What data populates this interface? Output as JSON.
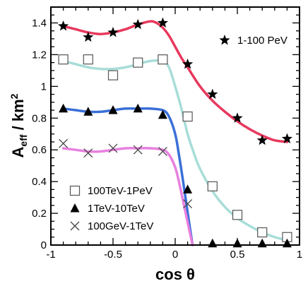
{
  "chart_data": {
    "type": "scatter",
    "xlabel": "cos θ",
    "ylabel_main": "A",
    "ylabel_sub": "eff",
    "ylabel_unit": " / km",
    "ylabel_sup": "2",
    "xlim": [
      -1,
      1
    ],
    "ylim": [
      0,
      1.5
    ],
    "xticks": [
      -1,
      -0.5,
      0,
      0.5,
      1
    ],
    "xtick_labels": [
      "-1",
      "-0.5",
      "0",
      "0.5",
      "1"
    ],
    "yticks": [
      0,
      0.2,
      0.4,
      0.6,
      0.8,
      1,
      1.2,
      1.4
    ],
    "ytick_labels": [
      "0",
      "0.2",
      "0.4",
      "0.6",
      "0.8",
      "1",
      "1.2",
      "1.4"
    ],
    "grid": false,
    "series": [
      {
        "name": "1-100 PeV",
        "marker": "star",
        "color": "#e8385c",
        "x": [
          -0.9,
          -0.7,
          -0.5,
          -0.3,
          -0.1,
          0.1,
          0.3,
          0.5,
          0.7,
          0.9
        ],
        "y": [
          1.38,
          1.31,
          1.34,
          1.39,
          1.4,
          1.14,
          0.95,
          0.8,
          0.66,
          0.67
        ],
        "curve_x": [
          -0.9,
          -0.8,
          -0.7,
          -0.6,
          -0.5,
          -0.4,
          -0.3,
          -0.2,
          -0.15,
          -0.1,
          -0.05,
          0.0,
          0.05,
          0.1,
          0.2,
          0.3,
          0.4,
          0.5,
          0.6,
          0.7,
          0.8,
          0.9
        ],
        "curve_y": [
          1.38,
          1.36,
          1.34,
          1.33,
          1.34,
          1.36,
          1.39,
          1.41,
          1.4,
          1.37,
          1.32,
          1.25,
          1.18,
          1.12,
          1.0,
          0.91,
          0.84,
          0.78,
          0.73,
          0.69,
          0.66,
          0.65
        ]
      },
      {
        "name": "100TeV-1PeV",
        "marker": "square",
        "color": "#a8ddd8",
        "x": [
          -0.9,
          -0.7,
          -0.5,
          -0.3,
          -0.1,
          0.1,
          0.3,
          0.5,
          0.7,
          0.9
        ],
        "y": [
          1.17,
          1.17,
          1.07,
          1.15,
          1.17,
          0.81,
          0.37,
          0.19,
          0.08,
          0.05
        ],
        "curve_x": [
          -0.9,
          -0.8,
          -0.7,
          -0.6,
          -0.5,
          -0.4,
          -0.3,
          -0.2,
          -0.1,
          -0.05,
          0.0,
          0.05,
          0.1,
          0.15,
          0.2,
          0.3,
          0.4,
          0.5,
          0.6,
          0.7,
          0.8,
          0.9
        ],
        "curve_y": [
          1.16,
          1.14,
          1.12,
          1.11,
          1.11,
          1.12,
          1.14,
          1.16,
          1.16,
          1.12,
          1.0,
          0.86,
          0.7,
          0.58,
          0.48,
          0.34,
          0.24,
          0.17,
          0.12,
          0.08,
          0.05,
          0.03
        ]
      },
      {
        "name": "1TeV-10TeV",
        "marker": "triangle",
        "color": "#3a6fd8",
        "x": [
          -0.9,
          -0.7,
          -0.5,
          -0.3,
          -0.1,
          0.1,
          0.3,
          0.5,
          0.7,
          0.9
        ],
        "y": [
          0.86,
          0.84,
          0.85,
          0.86,
          0.82,
          0.35,
          0.01,
          0.01,
          0.01,
          0.01
        ],
        "curve_x": [
          -0.9,
          -0.8,
          -0.7,
          -0.6,
          -0.5,
          -0.4,
          -0.3,
          -0.2,
          -0.1,
          -0.05,
          0.0,
          0.03,
          0.06,
          0.09,
          0.12,
          0.14
        ],
        "curve_y": [
          0.86,
          0.85,
          0.84,
          0.84,
          0.85,
          0.86,
          0.86,
          0.86,
          0.85,
          0.81,
          0.7,
          0.57,
          0.42,
          0.26,
          0.1,
          0.0
        ]
      },
      {
        "name": "100GeV-1TeV",
        "marker": "cross",
        "color": "#e880e0",
        "x": [
          -0.9,
          -0.7,
          -0.5,
          -0.3,
          -0.1,
          0.1
        ],
        "y": [
          0.64,
          0.58,
          0.61,
          0.6,
          0.59,
          0.26
        ],
        "curve_x": [
          -0.9,
          -0.8,
          -0.7,
          -0.6,
          -0.5,
          -0.4,
          -0.3,
          -0.2,
          -0.1,
          -0.05,
          0.0,
          0.03,
          0.06,
          0.09,
          0.12,
          0.14
        ],
        "curve_y": [
          0.61,
          0.6,
          0.59,
          0.59,
          0.6,
          0.61,
          0.61,
          0.61,
          0.6,
          0.57,
          0.49,
          0.4,
          0.29,
          0.18,
          0.07,
          0.0
        ]
      }
    ],
    "legend_top": {
      "entries": [
        "1-100 PeV"
      ],
      "placement": "top-right"
    },
    "legend_bottom": {
      "entries": [
        "100TeV-1PeV",
        "1TeV-10TeV",
        "100GeV-1TeV"
      ],
      "placement": "bottom-left"
    }
  }
}
